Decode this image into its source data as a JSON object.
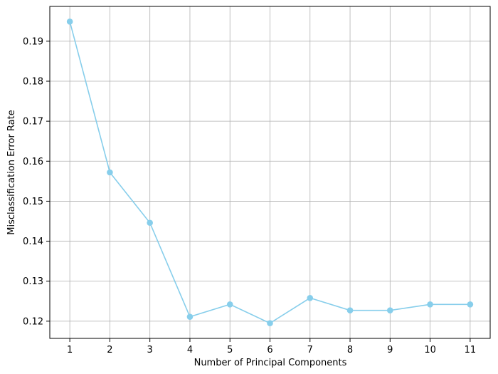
{
  "chart_data": {
    "type": "line",
    "title": "",
    "xlabel": "Number of Principal Components",
    "ylabel": "Misclassification Error Rate",
    "x": [
      1,
      2,
      3,
      4,
      5,
      6,
      7,
      8,
      9,
      10,
      11
    ],
    "x_tick_labels": [
      "1",
      "2",
      "3",
      "4",
      "5",
      "6",
      "7",
      "8",
      "9",
      "10",
      "11"
    ],
    "y_ticks": [
      0.12,
      0.13,
      0.14,
      0.15,
      0.16,
      0.17,
      0.18,
      0.19
    ],
    "y_tick_labels": [
      "0.12",
      "0.13",
      "0.14",
      "0.15",
      "0.16",
      "0.17",
      "0.18",
      "0.19"
    ],
    "xlim": [
      0.5,
      11.5
    ],
    "ylim": [
      0.1157,
      0.1987
    ],
    "series": [
      {
        "values": [
          0.1949,
          0.1572,
          0.1446,
          0.1211,
          0.1242,
          0.1195,
          0.1258,
          0.1227,
          0.1227,
          0.1242,
          0.1242
        ],
        "color": "#87ceeb",
        "marker": "circle"
      }
    ],
    "grid": true,
    "legend": "none"
  }
}
